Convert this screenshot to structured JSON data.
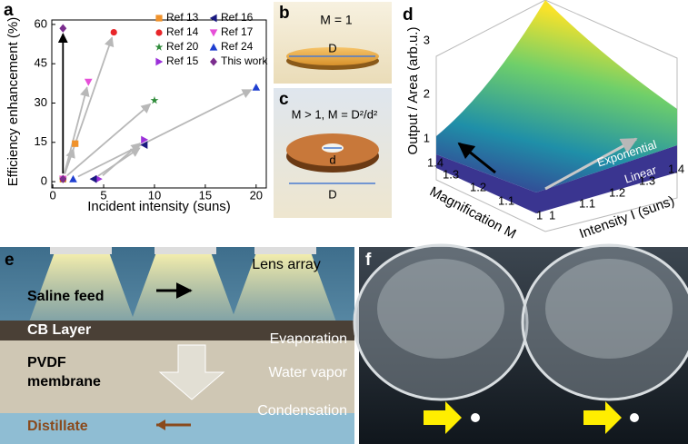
{
  "chart_data": {
    "type": "scatter",
    "panel_label": "a",
    "x_label": "Incident intensity (suns)",
    "y_label": "Efficiency enhancement (%)",
    "xlim": [
      -0.1,
      21
    ],
    "ylim": [
      -2.4,
      61.7
    ],
    "xticks": [
      0,
      5,
      10,
      15,
      20
    ],
    "yticks": [
      0,
      15,
      30,
      45,
      60
    ],
    "series": [
      {
        "name": "Ref 13",
        "color": "#f0922b",
        "marker": "square",
        "arrow_color": "#b8b8b8",
        "x": [
          1,
          2.2
        ],
        "values": [
          1,
          14.5
        ]
      },
      {
        "name": "Ref 14",
        "color": "#e8262a",
        "marker": "circle",
        "arrow_color": "#b8b8b8",
        "x": [
          1,
          6
        ],
        "values": [
          1,
          57
        ]
      },
      {
        "name": "Ref 20",
        "color": "#2e8b3a",
        "marker": "star",
        "arrow_color": "#b8b8b8",
        "x": [
          1,
          10
        ],
        "values": [
          1,
          31
        ]
      },
      {
        "name": "Ref 15",
        "color": "#9b30d9",
        "marker": "tri-right",
        "arrow_color": "#b8b8b8",
        "x": [
          4.5,
          9
        ],
        "values": [
          1,
          16
        ]
      },
      {
        "name": "Ref 16",
        "color": "#1a1a80",
        "marker": "tri-left",
        "arrow_color": "#b8b8b8",
        "x": [
          4,
          9
        ],
        "values": [
          1,
          14
        ]
      },
      {
        "name": "Ref 17",
        "color": "#e64fd8",
        "marker": "tri-down",
        "arrow_color": "#b8b8b8",
        "x": [
          1,
          3.5
        ],
        "values": [
          1,
          38
        ]
      },
      {
        "name": "Ref 24",
        "color": "#1f3fd0",
        "marker": "tri-up",
        "arrow_color": "#b8b8b8",
        "x": [
          2,
          20
        ],
        "values": [
          1,
          36
        ]
      },
      {
        "name": "This work",
        "color": "#7b2d8e",
        "marker": "diamond",
        "arrow_color": "#000000",
        "x": [
          1,
          1
        ],
        "values": [
          1,
          58.5
        ]
      }
    ]
  },
  "panel_b": {
    "label": "b",
    "formula": "M = 1",
    "dim": "D"
  },
  "panel_c": {
    "label": "c",
    "formula": "M > 1, M = D²/d²",
    "inner": "d",
    "outer": "D"
  },
  "panel_d": {
    "label": "d",
    "z_label": "Output / Area (arb.u.)",
    "m_label": "Magnification M",
    "i_label": "Intensity I (suns)",
    "z_ticks": [
      "1",
      "2",
      "3"
    ],
    "m_ticks": [
      "1.4",
      "1.3",
      "1.2",
      "1.1",
      "1"
    ],
    "i_ticks": [
      "1",
      "1.1",
      "1.2",
      "1.3",
      "1.4"
    ],
    "curve_1": "Exponential",
    "curve_2": "Linear"
  },
  "panel_e": {
    "label": "e",
    "lens": "Lens array",
    "feed": "Saline feed",
    "cb": "CB Layer",
    "evap": "Evaporation",
    "pvdf_1": "PVDF",
    "pvdf_2": "membrane",
    "vapor": "Water vapor",
    "cond": "Condensation",
    "distillate": "Distillate"
  },
  "panel_f": {
    "label": "f"
  }
}
